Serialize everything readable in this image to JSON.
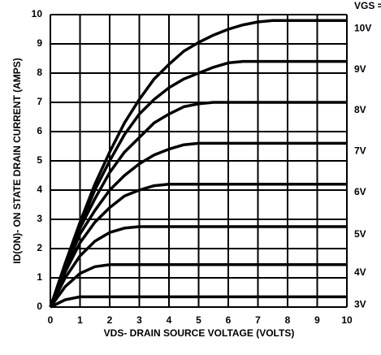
{
  "chart_data": {
    "type": "line",
    "x_label": "VDS- DRAIN SOURCE VOLTAGE (VOLTS)",
    "y_label": "ID(ON)- ON STATE DRAIN CURRENT (AMPS)",
    "legend_title": "VGS =",
    "x": [
      0,
      0.5,
      1,
      1.5,
      2,
      2.5,
      3,
      3.5,
      4,
      4.5,
      5,
      5.5,
      6,
      6.5,
      7,
      7.5,
      8,
      8.5,
      9,
      9.5,
      10
    ],
    "series": [
      {
        "name": "10V",
        "color": "#000000",
        "values": [
          0,
          1.5,
          2.9,
          4.2,
          5.3,
          6.3,
          7.1,
          7.8,
          8.3,
          8.75,
          9.05,
          9.3,
          9.5,
          9.65,
          9.75,
          9.8,
          9.8,
          9.8,
          9.8,
          9.8,
          9.8
        ]
      },
      {
        "name": "9V",
        "color": "#000000",
        "values": [
          0,
          1.45,
          2.8,
          4.0,
          5.0,
          5.9,
          6.6,
          7.1,
          7.5,
          7.8,
          8.0,
          8.2,
          8.35,
          8.4,
          8.4,
          8.4,
          8.4,
          8.4,
          8.4,
          8.4,
          8.4
        ]
      },
      {
        "name": "8V",
        "color": "#000000",
        "values": [
          0,
          1.4,
          2.7,
          3.7,
          4.6,
          5.3,
          5.8,
          6.3,
          6.6,
          6.85,
          6.95,
          7.0,
          7.0,
          7.0,
          7.0,
          7.0,
          7.0,
          7.0,
          7.0,
          7.0,
          7.0
        ]
      },
      {
        "name": "7V",
        "color": "#000000",
        "values": [
          0,
          1.3,
          2.5,
          3.3,
          4.0,
          4.5,
          4.9,
          5.2,
          5.4,
          5.55,
          5.6,
          5.6,
          5.6,
          5.6,
          5.6,
          5.6,
          5.6,
          5.6,
          5.6,
          5.6,
          5.6
        ]
      },
      {
        "name": "6V",
        "color": "#000000",
        "values": [
          0,
          1.2,
          2.2,
          2.9,
          3.4,
          3.8,
          4.0,
          4.15,
          4.2,
          4.2,
          4.2,
          4.2,
          4.2,
          4.2,
          4.2,
          4.2,
          4.2,
          4.2,
          4.2,
          4.2,
          4.2
        ]
      },
      {
        "name": "5V",
        "color": "#000000",
        "values": [
          0,
          1.0,
          1.75,
          2.25,
          2.55,
          2.7,
          2.75,
          2.75,
          2.75,
          2.75,
          2.75,
          2.75,
          2.75,
          2.75,
          2.75,
          2.75,
          2.75,
          2.75,
          2.75,
          2.75,
          2.75
        ]
      },
      {
        "name": "4V",
        "color": "#000000",
        "values": [
          0,
          0.7,
          1.15,
          1.38,
          1.45,
          1.45,
          1.45,
          1.45,
          1.45,
          1.45,
          1.45,
          1.45,
          1.45,
          1.45,
          1.45,
          1.45,
          1.45,
          1.45,
          1.45,
          1.45,
          1.45
        ]
      },
      {
        "name": "3V",
        "color": "#000000",
        "values": [
          0,
          0.25,
          0.35,
          0.35,
          0.35,
          0.35,
          0.35,
          0.35,
          0.35,
          0.35,
          0.35,
          0.35,
          0.35,
          0.35,
          0.35,
          0.35,
          0.35,
          0.35,
          0.35,
          0.35,
          0.35
        ]
      }
    ],
    "xlim": [
      0,
      10
    ],
    "ylim": [
      0,
      10
    ],
    "xticks": [
      0,
      1,
      2,
      3,
      4,
      5,
      6,
      7,
      8,
      9,
      10
    ],
    "yticks": [
      0,
      1,
      2,
      3,
      4,
      5,
      6,
      7,
      8,
      9,
      10
    ],
    "grid": true
  }
}
